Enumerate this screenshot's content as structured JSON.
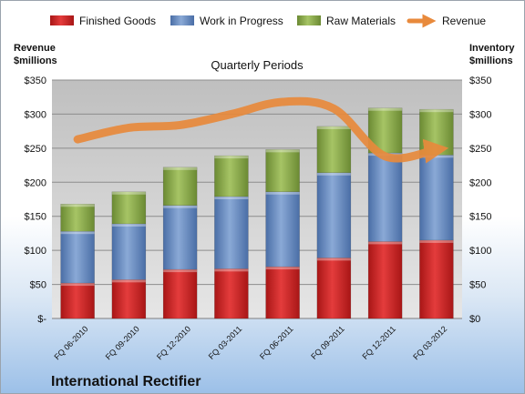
{
  "chart_data": {
    "type": "bar",
    "stacked": true,
    "title": "Quarterly Periods",
    "company": "International Rectifier",
    "ylabel_left": [
      "Revenue",
      "$millions"
    ],
    "ylabel_right": [
      "Inventory",
      "$millions"
    ],
    "ylim": [
      0,
      350
    ],
    "yticks_left": [
      "$-",
      "$50",
      "$100",
      "$150",
      "$200",
      "$250",
      "$300",
      "$350"
    ],
    "yticks_right": [
      "$0",
      "$50",
      "$100",
      "$150",
      "$200",
      "$250",
      "$300",
      "$350"
    ],
    "grid": true,
    "legend_position": "top",
    "categories": [
      "FQ 06-2010",
      "FQ 09-2010",
      "FQ 12-2010",
      "FQ 03-2011",
      "FQ 06-2011",
      "FQ 09-2011",
      "FQ 12-2011",
      "FQ 03-2012"
    ],
    "series": [
      {
        "name": "Finished Goods",
        "color": "#d22a2a",
        "values": [
          52,
          57,
          72,
          73,
          76,
          89,
          113,
          115
        ]
      },
      {
        "name": "Work in Progress",
        "color": "#6d8fc4",
        "values": [
          76,
          82,
          94,
          106,
          110,
          125,
          130,
          125
        ]
      },
      {
        "name": "Raw Materials",
        "color": "#8fb050",
        "values": [
          40,
          47,
          56,
          60,
          62,
          68,
          66,
          67
        ]
      },
      {
        "name": "Revenue",
        "type": "line",
        "color": "#e88a3c",
        "values": [
          263,
          280,
          284,
          300,
          318,
          308,
          238,
          248
        ]
      }
    ]
  }
}
